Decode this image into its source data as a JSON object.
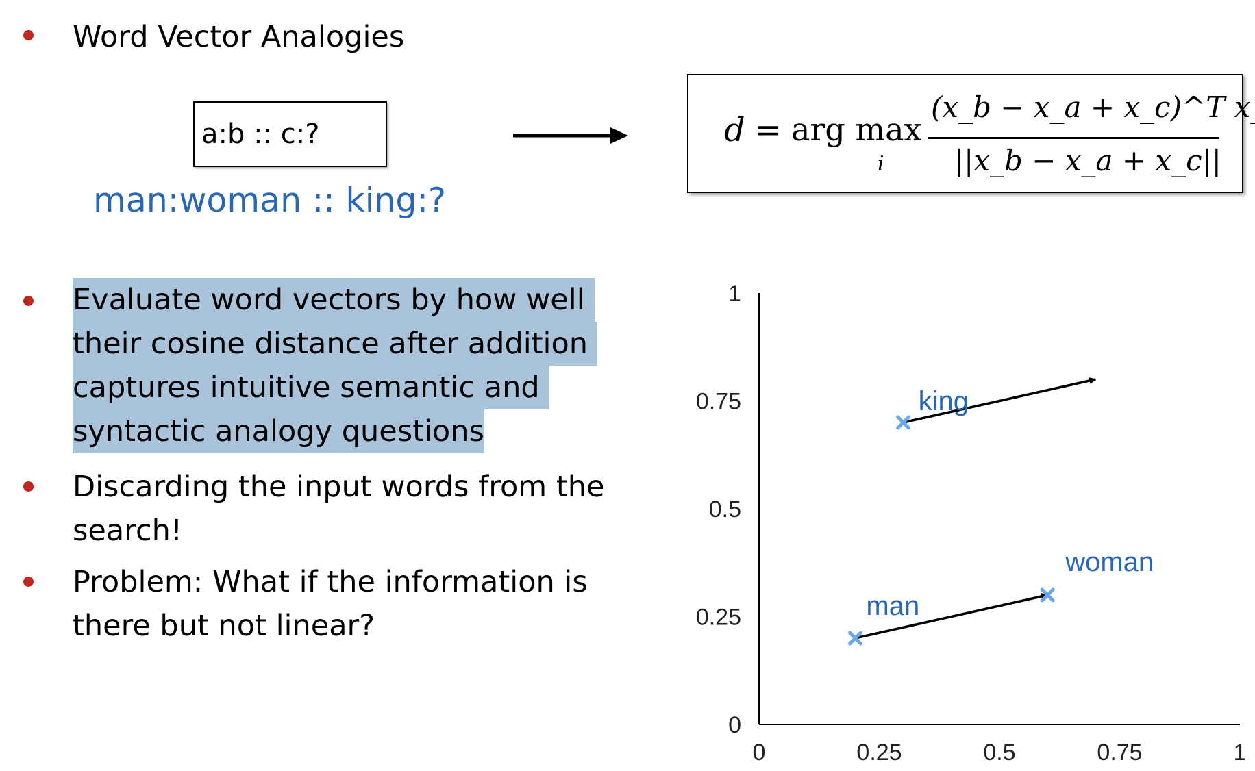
{
  "bullets": [
    {
      "text": "Word Vector Analogies"
    },
    {
      "lines": [
        "Evaluate word vectors by how well",
        "their cosine distance after addition",
        "captures intuitive semantic and",
        "syntactic analogy questions"
      ]
    },
    {
      "lines": [
        "Discarding the input words from the",
        "search!"
      ]
    },
    {
      "lines": [
        "Problem: What if the information is",
        "there but not linear?"
      ]
    }
  ],
  "analogy_template": "a:b :: c:?",
  "analogy_example": "man:woman :: king:?",
  "formula": {
    "lhs": "d",
    "equals": "=",
    "operator": "arg max",
    "subscript": "i",
    "numerator": "(x_b − x_a + x_c)^T x_i",
    "denominator": "||x_b − x_a + x_c||"
  },
  "colors": {
    "bullet": "#c0281f",
    "example_text": "#2a66b8",
    "highlight": "#a9c3da",
    "point": "#6aa6e8"
  },
  "chart_data": {
    "type": "scatter",
    "xlim": [
      0,
      1
    ],
    "ylim": [
      0,
      1
    ],
    "x_ticks": [
      "0",
      "0.25",
      "0.5",
      "0.75",
      "1"
    ],
    "y_ticks": [
      "0",
      "0.25",
      "0.5",
      "0.75",
      "1"
    ],
    "grid": false,
    "points": [
      {
        "label": "king",
        "x": 0.3,
        "y": 0.7
      },
      {
        "label": "man",
        "x": 0.2,
        "y": 0.2
      },
      {
        "label": "woman",
        "x": 0.6,
        "y": 0.3
      }
    ],
    "arrows": [
      {
        "from": [
          0.2,
          0.2
        ],
        "to": [
          0.6,
          0.3
        ]
      },
      {
        "from": [
          0.3,
          0.7
        ],
        "to": [
          0.7,
          0.8
        ]
      }
    ]
  }
}
